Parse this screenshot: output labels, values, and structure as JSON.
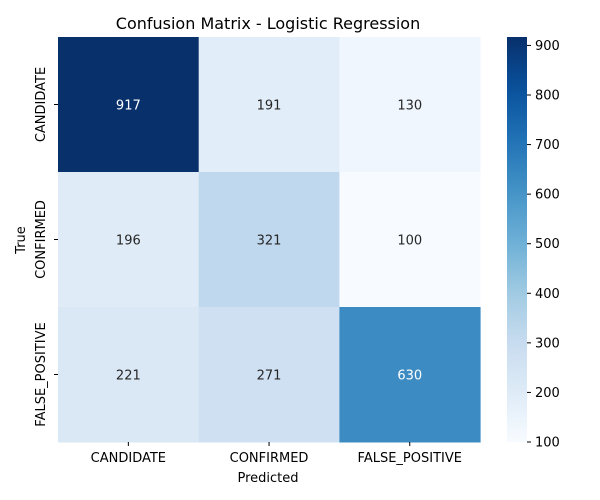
{
  "chart_data": {
    "type": "heatmap",
    "title": "Confusion Matrix - Logistic Regression",
    "xlabel": "Predicted",
    "ylabel": "True",
    "x_categories": [
      "CANDIDATE",
      "CONFIRMED",
      "FALSE_POSITIVE"
    ],
    "y_categories": [
      "CANDIDATE",
      "CONFIRMED",
      "FALSE_POSITIVE"
    ],
    "values": [
      [
        917,
        191,
        130
      ],
      [
        196,
        321,
        100
      ],
      [
        221,
        271,
        630
      ]
    ],
    "colormap": "Blues",
    "color_range": [
      100,
      917
    ],
    "colorbar_ticks": [
      100,
      200,
      300,
      400,
      500,
      600,
      700,
      800,
      900
    ],
    "annotated": true
  }
}
